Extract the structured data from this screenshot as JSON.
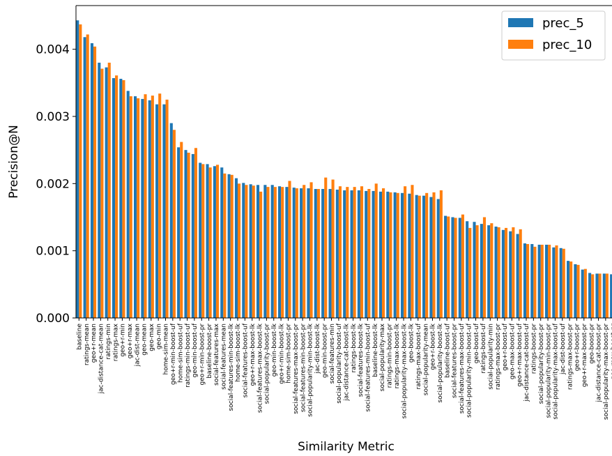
{
  "chart_data": {
    "type": "bar",
    "xlabel": "Similarity Metric",
    "ylabel": "Precision@N",
    "ylim": [
      0,
      0.00465
    ],
    "yticks": [
      "0.000",
      "0.001",
      "0.002",
      "0.003",
      "0.004"
    ],
    "legend_position": "top-right",
    "grid": false,
    "categories": [
      "baseline",
      "ratings-mean",
      "geo+r-mean",
      "jac-distance-cat-mean",
      "ratings-min",
      "ratings-max",
      "geo+r-min",
      "geo+r-max",
      "jac-dist-mean",
      "geo-mean",
      "geo-max",
      "geo-min",
      "home-sim-mean",
      "geo+r-min-boost-uf",
      "home-sim-boost-uf",
      "ratings-min-boost-uf",
      "geo-min-boost-uf",
      "geo+r-min-boost-pr",
      "baseline-boost-pr",
      "social-features-max",
      "social-features-mean",
      "social-features-min-boost-lk",
      "home-sim-boost-lk",
      "social-features-boost-uf",
      "geo+r-max-boost-lk",
      "social-features-max-boost-lk",
      "social-popularity-boost-pr",
      "geo-min-boost-lk",
      "geo+r-min-boost-lk",
      "home-sim-boost-pr",
      "social-features-max-boost-pr",
      "social-features-min-boost-pr",
      "social-popularity-min-boost-lk",
      "jac-dist-boost-lk",
      "geo-min-boost-pr",
      "social-features-min",
      "social-popularity-boost-uf",
      "jac-distance-cat-boost-lk",
      "ratings-boost-lk",
      "social-features-boost-lk",
      "social-features-min-boost-uf",
      "baseline-boost-lk",
      "social-popularity-max",
      "ratings-min-boost-pr",
      "ratings-max-boost-lk",
      "social-popularity-max-boost-lk",
      "geo-boost-lk",
      "ratings-max-boost-uf",
      "social-popularity-mean",
      "geo+r-boost-lk",
      "social-popularity-boost-lk",
      "baseline-boost-uf",
      "social-features-boost-pr",
      "social-features-max-boost-uf",
      "social-popularity-min-boost-uf",
      "geo-boost-uf",
      "ratings-boost-uf",
      "social-popularity-min",
      "ratings-max-boost-pr",
      "geo+r-boost-uf",
      "geo-max-boost-uf",
      "geo+r-max-boost-uf",
      "jac-distance-cat-boost-uf",
      "ratings-boost-pr",
      "social-popularity-boost-pr",
      "social-popularity-min-boost-pr",
      "social-popularity-max-boost-uf",
      "jac-dist-boost-uf",
      "ratings-max-boost-pr",
      "geo+r-boost-pr",
      "geo+r-max-boost-pr",
      "geo-boost-pr",
      "jac-distance-cat-boost-pr",
      "social-popularity-max-boost-pr",
      "geo-max-boost-pr",
      "jac-dist-boost-pr"
    ],
    "series": [
      {
        "name": "prec_5",
        "color": "#1f77b4",
        "values": [
          0.00443,
          0.00418,
          0.00409,
          0.0038,
          0.00373,
          0.00357,
          0.00356,
          0.00338,
          0.0033,
          0.00326,
          0.00324,
          0.00318,
          0.00318,
          0.0029,
          0.00254,
          0.0025,
          0.00244,
          0.00231,
          0.00229,
          0.00226,
          0.00224,
          0.00214,
          0.00208,
          0.00201,
          0.00199,
          0.00198,
          0.00198,
          0.00198,
          0.00196,
          0.00195,
          0.00194,
          0.00193,
          0.00193,
          0.00192,
          0.00192,
          0.00192,
          0.00191,
          0.0019,
          0.0019,
          0.0019,
          0.00189,
          0.00189,
          0.00188,
          0.00188,
          0.00187,
          0.00186,
          0.00185,
          0.00183,
          0.00182,
          0.0018,
          0.00177,
          0.00152,
          0.0015,
          0.00149,
          0.00144,
          0.00143,
          0.0014,
          0.00138,
          0.00136,
          0.00131,
          0.00129,
          0.00125,
          0.00111,
          0.0011,
          0.00109,
          0.00109,
          0.00105,
          0.00104,
          0.00085,
          0.0008,
          0.00072,
          0.00067,
          0.00066,
          0.00066,
          0.00065,
          0.00064
        ]
      },
      {
        "name": "prec_10",
        "color": "#ff7f0e",
        "values": [
          0.00437,
          0.00422,
          0.00404,
          0.00371,
          0.0038,
          0.00361,
          0.00354,
          0.0033,
          0.00327,
          0.00333,
          0.00331,
          0.00334,
          0.00325,
          0.0028,
          0.00262,
          0.00246,
          0.00253,
          0.00229,
          0.00224,
          0.00228,
          0.00215,
          0.00213,
          0.002,
          0.00198,
          0.00197,
          0.00188,
          0.00195,
          0.00195,
          0.00195,
          0.00204,
          0.00193,
          0.00198,
          0.00202,
          0.00192,
          0.00209,
          0.00206,
          0.00196,
          0.00195,
          0.00195,
          0.00196,
          0.00192,
          0.002,
          0.00193,
          0.00187,
          0.00186,
          0.00196,
          0.00198,
          0.00182,
          0.00186,
          0.00187,
          0.0019,
          0.00151,
          0.00149,
          0.00154,
          0.00134,
          0.00138,
          0.0015,
          0.00141,
          0.00135,
          0.00134,
          0.00135,
          0.00132,
          0.0011,
          0.00106,
          0.00109,
          0.00109,
          0.00108,
          0.00103,
          0.00084,
          0.00079,
          0.00073,
          0.00065,
          0.00066,
          0.00066,
          0.00068,
          0.00064
        ]
      }
    ]
  }
}
